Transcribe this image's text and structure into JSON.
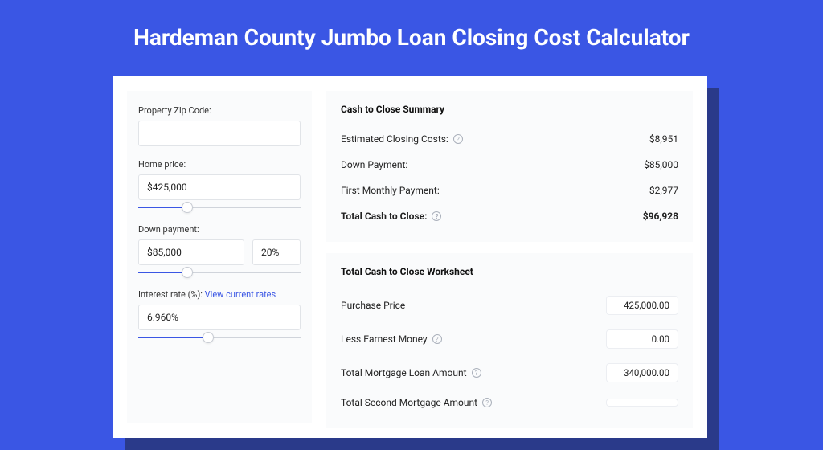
{
  "colors": {
    "page_bg": "#3a56e4",
    "shadow": "#2a3a8a",
    "card_bg": "#ffffff",
    "panel_bg": "#fafbfc",
    "border": "#e1e4e8",
    "slider_fill": "#3a56e4",
    "slider_track": "#d0d4db",
    "text": "#222222",
    "muted": "#aab0bb",
    "link": "#3a56e4"
  },
  "page": {
    "title": "Hardeman County Jumbo Loan Closing Cost Calculator"
  },
  "form": {
    "zip": {
      "label": "Property Zip Code:",
      "value": ""
    },
    "home_price": {
      "label": "Home price:",
      "value": "$425,000",
      "slider_pct": 30
    },
    "down_payment": {
      "label": "Down payment:",
      "value": "$85,000",
      "pct_value": "20%",
      "slider_pct": 30
    },
    "interest_rate": {
      "label": "Interest rate (%):",
      "link_text": "View current rates",
      "value": "6.960%",
      "slider_pct": 43
    }
  },
  "summary": {
    "title": "Cash to Close Summary",
    "rows": [
      {
        "label": "Estimated Closing Costs:",
        "has_info": true,
        "value": "$8,951"
      },
      {
        "label": "Down Payment:",
        "has_info": false,
        "value": "$85,000"
      },
      {
        "label": "First Monthly Payment:",
        "has_info": false,
        "value": "$2,977"
      }
    ],
    "total": {
      "label": "Total Cash to Close:",
      "has_info": true,
      "value": "$96,928"
    }
  },
  "worksheet": {
    "title": "Total Cash to Close Worksheet",
    "rows": [
      {
        "label": "Purchase Price",
        "has_info": false,
        "value": "425,000.00"
      },
      {
        "label": "Less Earnest Money",
        "has_info": true,
        "value": "0.00"
      },
      {
        "label": "Total Mortgage Loan Amount",
        "has_info": true,
        "value": "340,000.00"
      },
      {
        "label": "Total Second Mortgage Amount",
        "has_info": true,
        "value": ""
      }
    ]
  }
}
